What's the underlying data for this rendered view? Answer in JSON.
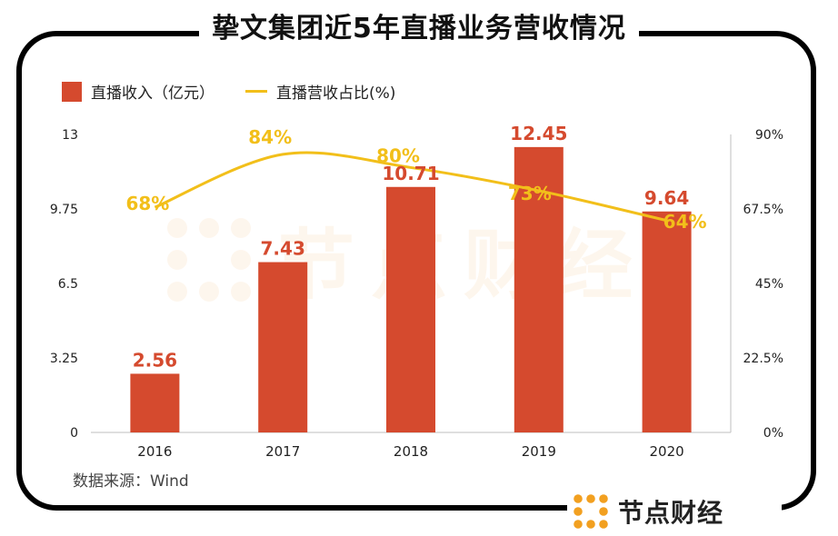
{
  "title": "挚文集团近5年直播业务营收情况",
  "legend": {
    "bar_label": "直播收入（亿元）",
    "line_label": "直播营收占比(%)"
  },
  "source": "数据来源：Wind",
  "logo_text": "节点财经",
  "watermark_text": "节点财经",
  "colors": {
    "bar": "#D54A2E",
    "line": "#F2BF1A",
    "bar_label": "#D54A2E",
    "line_label": "#F2BF1A",
    "frame": "#000000"
  },
  "chart_data": {
    "type": "bar",
    "categories": [
      "2016",
      "2017",
      "2018",
      "2019",
      "2020"
    ],
    "series": [
      {
        "name": "直播收入（亿元）",
        "type": "bar",
        "axis": "left",
        "values": [
          2.56,
          7.43,
          10.71,
          12.45,
          9.64
        ],
        "labels": [
          "2.56",
          "7.43",
          "10.71",
          "12.45",
          "9.64"
        ]
      },
      {
        "name": "直播营收占比(%)",
        "type": "line",
        "axis": "right",
        "values": [
          68,
          84,
          80,
          73,
          64
        ],
        "labels": [
          "68%",
          "84%",
          "80%",
          "73%",
          "64%"
        ]
      }
    ],
    "ylim": [
      0,
      13
    ],
    "y_ticks": [
      "0",
      "3.25",
      "6.5",
      "9.75",
      "13"
    ],
    "y_tick_values": [
      0,
      3.25,
      6.5,
      9.75,
      13
    ],
    "y2lim": [
      0,
      90
    ],
    "y2_ticks": [
      "0%",
      "22.5%",
      "45%",
      "67.5%",
      "90%"
    ],
    "y2_tick_values": [
      0,
      22.5,
      45,
      67.5,
      90
    ],
    "grid": false,
    "legend_position": "top-left"
  }
}
